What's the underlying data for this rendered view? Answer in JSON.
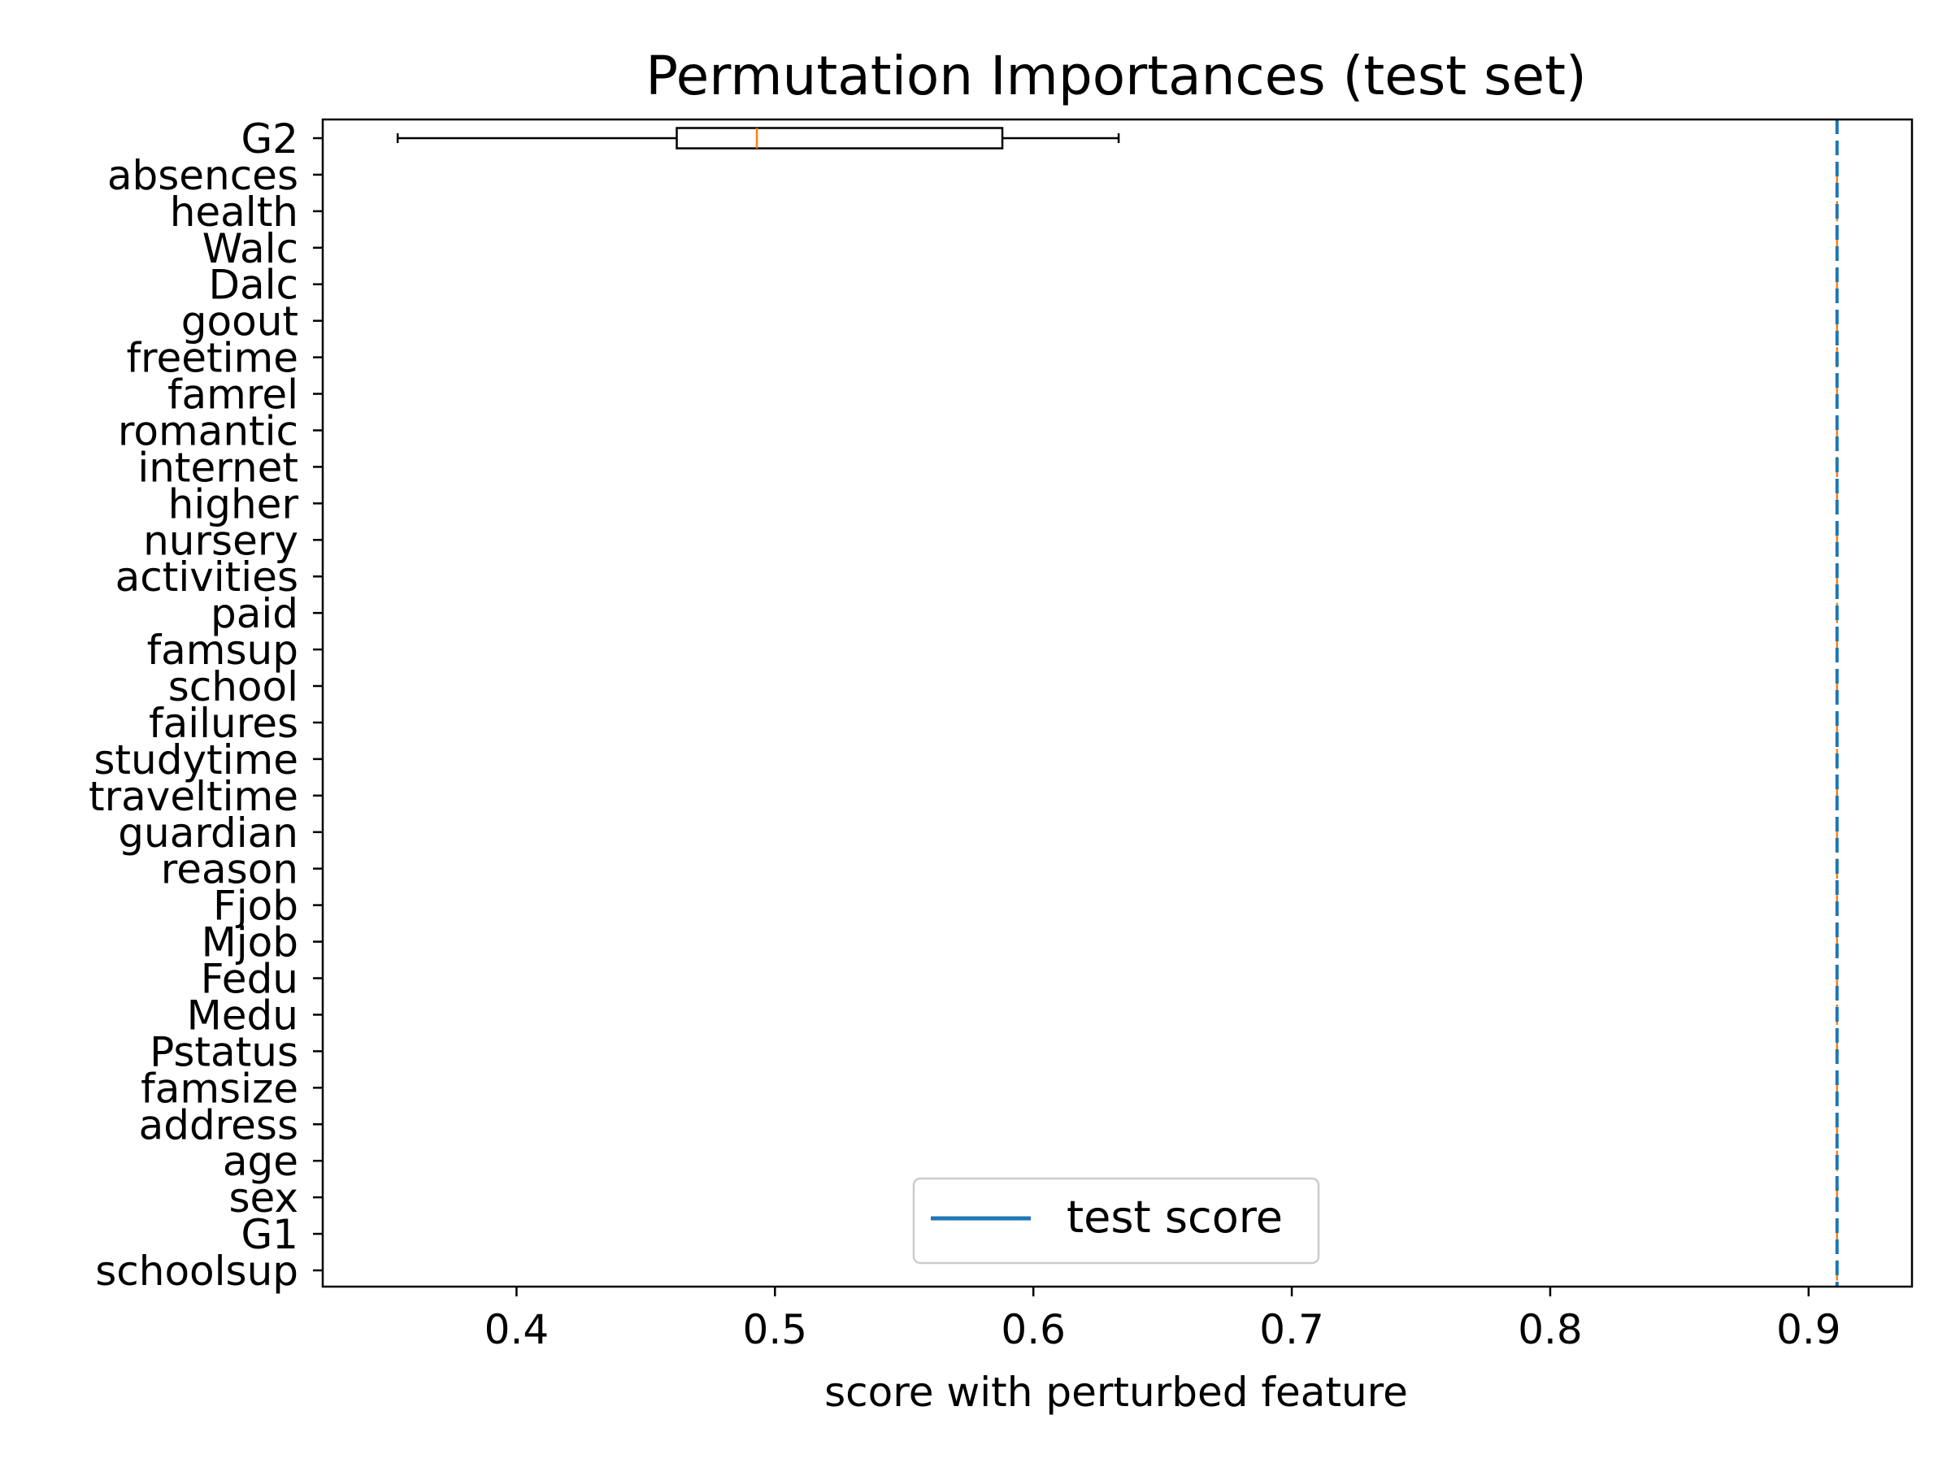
{
  "chart_data": {
    "type": "boxplot",
    "title": "Permutation Importances (test set)",
    "xlabel": "score with perturbed feature",
    "ylabel": "",
    "xlim": [
      0.325,
      0.94
    ],
    "xticks": [
      0.4,
      0.5,
      0.6,
      0.7,
      0.8,
      0.9
    ],
    "xtick_labels": [
      "0.4",
      "0.5",
      "0.6",
      "0.7",
      "0.8",
      "0.9"
    ],
    "categories": [
      "G2",
      "absences",
      "health",
      "Walc",
      "Dalc",
      "goout",
      "freetime",
      "famrel",
      "romantic",
      "internet",
      "higher",
      "nursery",
      "activities",
      "paid",
      "famsup",
      "school",
      "failures",
      "studytime",
      "traveltime",
      "guardian",
      "reason",
      "Fjob",
      "Mjob",
      "Fedu",
      "Medu",
      "Pstatus",
      "famsize",
      "address",
      "age",
      "sex",
      "G1",
      "schoolsup"
    ],
    "boxes": [
      {
        "feature": "G2",
        "whisker_low": 0.354,
        "q1": 0.462,
        "median": 0.493,
        "q3": 0.588,
        "whisker_high": 0.633
      }
    ],
    "constant_value": 0.911,
    "reference_line": {
      "name": "test score",
      "value": 0.911,
      "color": "#1f77b4"
    },
    "median_color": "#ff7f0e",
    "box_color": "#000000",
    "legend": {
      "entries": [
        "test score"
      ],
      "position": "lower-center"
    },
    "grid": false
  }
}
